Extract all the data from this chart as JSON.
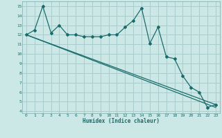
{
  "title": "",
  "xlabel": "Humidex (Indice chaleur)",
  "ylabel": "",
  "background_color": "#cce8e6",
  "grid_color": "#aacccc",
  "line_color": "#1a6b6b",
  "x_ticks": [
    0,
    1,
    2,
    3,
    4,
    5,
    6,
    7,
    8,
    9,
    10,
    11,
    12,
    13,
    14,
    15,
    16,
    17,
    18,
    19,
    20,
    21,
    22,
    23
  ],
  "y_ticks": [
    4,
    5,
    6,
    7,
    8,
    9,
    10,
    11,
    12,
    13,
    14,
    15
  ],
  "ylim": [
    3.8,
    15.5
  ],
  "xlim": [
    -0.5,
    23.5
  ],
  "series1_x": [
    0,
    1,
    2,
    3,
    4,
    5,
    6,
    7,
    8,
    9,
    10,
    11,
    12,
    13,
    14,
    15,
    16,
    17,
    18,
    19,
    20,
    21,
    22,
    23
  ],
  "series1_y": [
    12.0,
    12.5,
    15.0,
    12.2,
    13.0,
    12.0,
    12.0,
    11.8,
    11.8,
    11.8,
    12.0,
    12.0,
    12.8,
    13.5,
    14.8,
    11.1,
    12.8,
    9.7,
    9.5,
    7.7,
    6.5,
    6.0,
    4.4,
    4.7
  ],
  "series2_x": [
    0,
    23
  ],
  "series2_y": [
    12.0,
    4.7
  ],
  "series3_x": [
    0,
    23
  ],
  "series3_y": [
    12.0,
    4.4
  ]
}
